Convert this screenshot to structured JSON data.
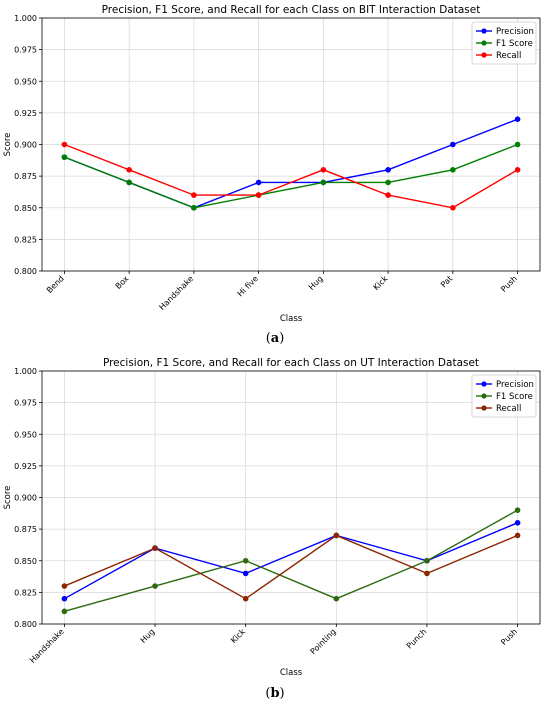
{
  "chart_data": [
    {
      "type": "line",
      "title": "Precision, F1 Score, and Recall for each Class on BIT Interaction Dataset",
      "xlabel": "Class",
      "ylabel": "Score",
      "ylim": [
        0.8,
        1.0
      ],
      "yticks": [
        "0.800",
        "0.825",
        "0.850",
        "0.875",
        "0.900",
        "0.925",
        "0.950",
        "0.975",
        "1.000"
      ],
      "grid": true,
      "legend_position": "top-right",
      "categories": [
        "Bend",
        "Box",
        "Handshake",
        "Hi five",
        "Hug",
        "Kick",
        "Pat",
        "Push"
      ],
      "series": [
        {
          "name": "Precision",
          "color": "#0000ff",
          "values": [
            0.89,
            0.87,
            0.85,
            0.87,
            0.87,
            0.88,
            0.9,
            0.92
          ]
        },
        {
          "name": "F1 Score",
          "color": "#008000",
          "values": [
            0.89,
            0.87,
            0.85,
            0.86,
            0.87,
            0.87,
            0.88,
            0.9
          ]
        },
        {
          "name": "Recall",
          "color": "#ff0000",
          "values": [
            0.9,
            0.88,
            0.86,
            0.86,
            0.88,
            0.86,
            0.85,
            0.88
          ]
        }
      ],
      "panel_label": "a"
    },
    {
      "type": "line",
      "title": "Precision, F1 Score, and Recall for each Class on UT Interaction Dataset",
      "xlabel": "Class",
      "ylabel": "Score",
      "ylim": [
        0.8,
        1.0
      ],
      "yticks": [
        "0.800",
        "0.825",
        "0.850",
        "0.875",
        "0.900",
        "0.925",
        "0.950",
        "0.975",
        "1.000"
      ],
      "grid": true,
      "legend_position": "top-right",
      "categories": [
        "Handshake",
        "Hug",
        "Kick",
        "Pointing",
        "Punch",
        "Push"
      ],
      "series": [
        {
          "name": "Precision",
          "color": "#0000ff",
          "values": [
            0.82,
            0.86,
            0.84,
            0.87,
            0.85,
            0.88
          ]
        },
        {
          "name": "F1 Score",
          "color": "#2e6b0f",
          "values": [
            0.81,
            0.83,
            0.85,
            0.82,
            0.85,
            0.89
          ]
        },
        {
          "name": "Recall",
          "color": "#8b2500",
          "values": [
            0.83,
            0.86,
            0.82,
            0.87,
            0.84,
            0.87
          ]
        }
      ],
      "panel_label": "b"
    }
  ]
}
